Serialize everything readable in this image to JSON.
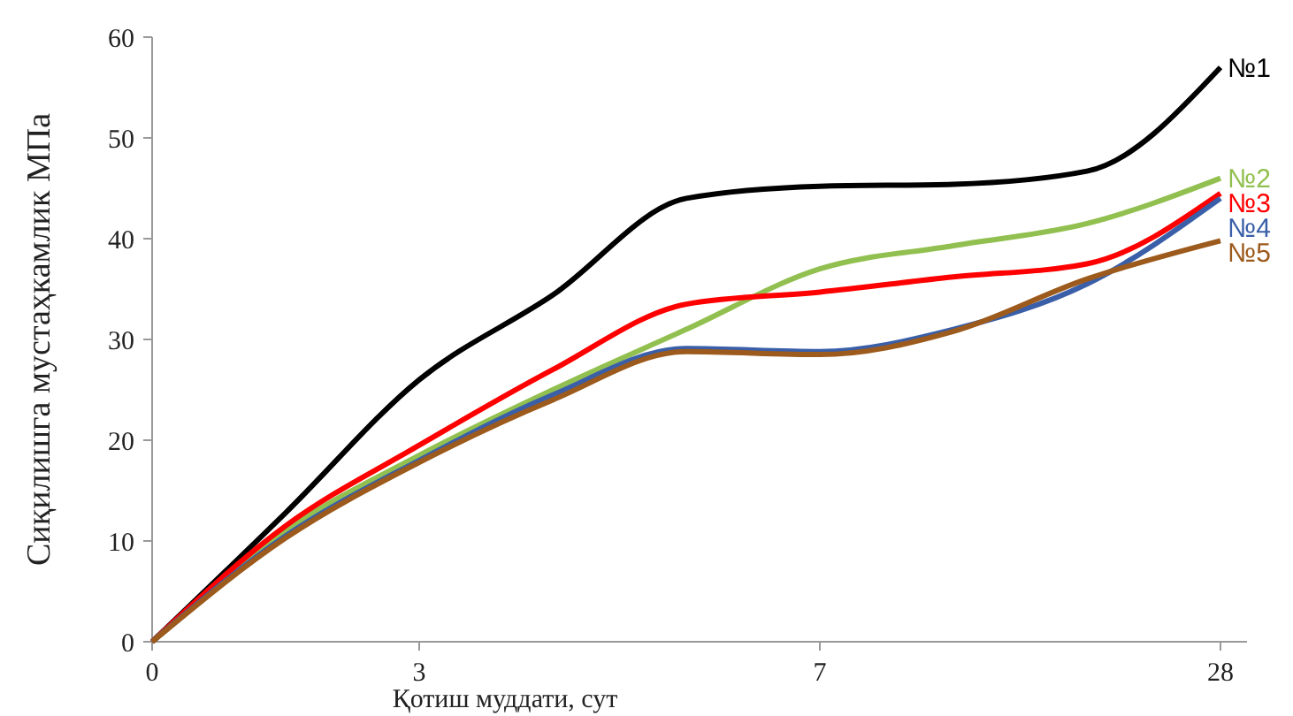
{
  "chart_data": {
    "type": "line",
    "xlabel": "Қотиш муддати, сут",
    "ylabel": "Сиқилишга мустаҳкамлик МПа",
    "categories": [
      "0",
      null,
      "3",
      null,
      null,
      "7",
      null,
      null,
      "28"
    ],
    "ylim": [
      0,
      60
    ],
    "yticks": [
      0,
      10,
      20,
      30,
      40,
      50,
      60
    ],
    "grid": false,
    "marker": "none",
    "line_style": "solid",
    "series": [
      {
        "name": "№1",
        "color": "#000000",
        "values": [
          0,
          12.8,
          26,
          34.4,
          44,
          45.2,
          45.4,
          46.7,
          57
        ]
      },
      {
        "name": "№2",
        "color": "#92c050",
        "values": [
          0,
          11,
          18.5,
          25,
          31,
          37,
          39.3,
          41.5,
          46
        ]
      },
      {
        "name": "№3",
        "color": "#ff0000",
        "values": [
          0,
          11.5,
          19.5,
          27,
          33.5,
          34.7,
          36.2,
          37.5,
          44.5
        ]
      },
      {
        "name": "№4",
        "color": "#3a5fa8",
        "values": [
          0,
          10.5,
          18,
          24.5,
          29.1,
          28.8,
          31,
          35.5,
          44
        ]
      },
      {
        "name": "№5",
        "color": "#9c5a1c",
        "values": [
          0,
          10.3,
          17.8,
          24,
          28.8,
          28.5,
          30.8,
          36,
          39.8
        ]
      }
    ]
  }
}
